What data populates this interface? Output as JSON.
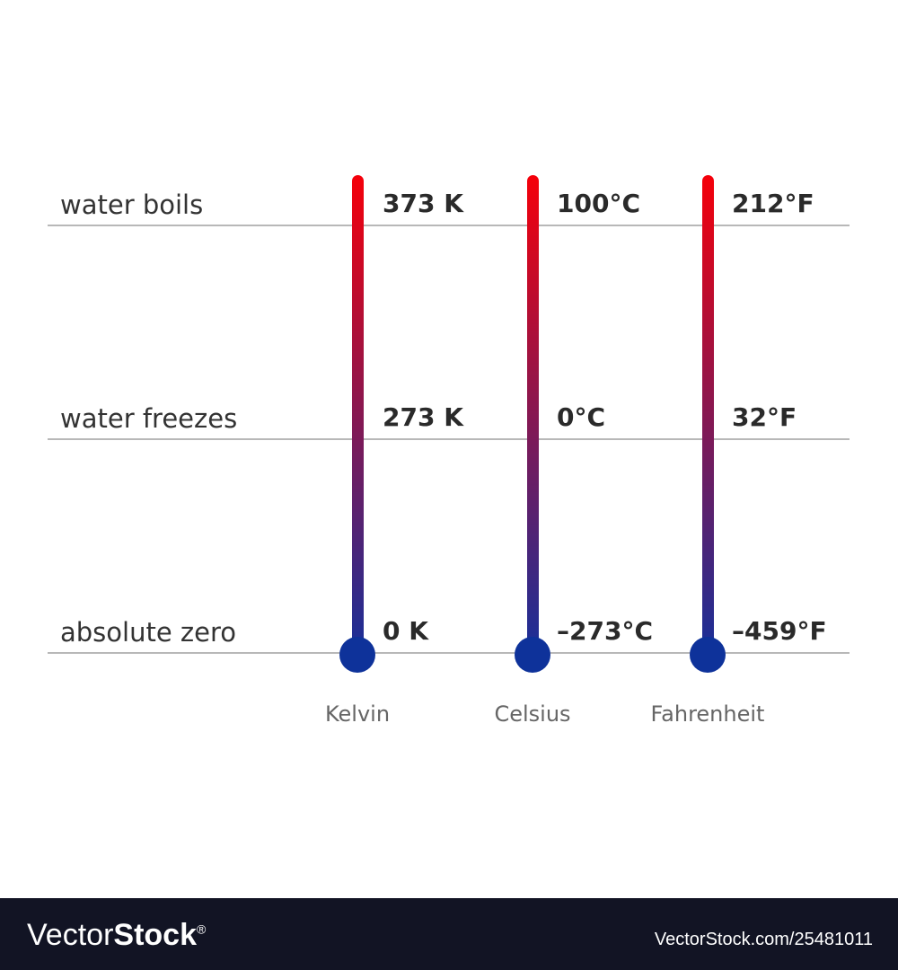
{
  "rows": [
    {
      "label": "water boils"
    },
    {
      "label": "water freezes"
    },
    {
      "label": "absolute zero"
    }
  ],
  "scales": [
    {
      "name": "Kelvin",
      "values": [
        "373 K",
        "273 K",
        "0 K"
      ]
    },
    {
      "name": "Celsius",
      "values": [
        "100°C",
        "0°C",
        "–273°C"
      ]
    },
    {
      "name": "Fahrenheit",
      "values": [
        "212°F",
        "32°F",
        "–459°F"
      ]
    }
  ],
  "colors": {
    "hot": "#f5000a",
    "cold": "#1a2f98",
    "bulb": "#0e329a"
  },
  "footer": {
    "logo_light": "Vector",
    "logo_bold": "Stock",
    "logo_mark": "®",
    "url": "VectorStock.com/25481011"
  }
}
